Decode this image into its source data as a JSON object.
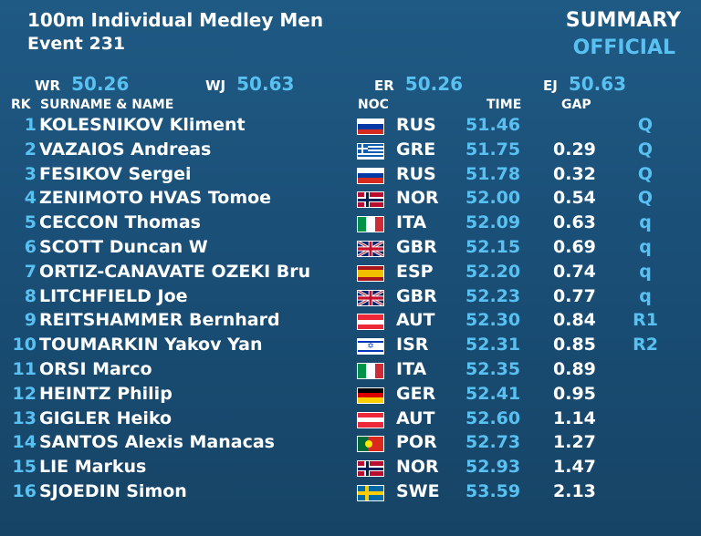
{
  "header": {
    "title": "100m Individual Medley Men",
    "event": "Event 231",
    "status_line1": "SUMMARY",
    "status_line2": "OFFICIAL"
  },
  "records": [
    {
      "label": "WR",
      "value": "50.26"
    },
    {
      "label": "WJ",
      "value": "50.63"
    },
    {
      "label": "ER",
      "value": "50.26"
    },
    {
      "label": "EJ",
      "value": "50.63"
    }
  ],
  "columns": {
    "rank": "RK",
    "name": "SURNAME & NAME",
    "noc": "NOC",
    "time": "TIME",
    "gap": "GAP"
  },
  "results": [
    {
      "rank": "1",
      "name": "KOLESNIKOV Kliment",
      "flag": "russia-flag-icon",
      "noc": "RUS",
      "time": "51.46",
      "gap": "",
      "qual": "Q"
    },
    {
      "rank": "2",
      "name": "VAZAIOS Andreas",
      "flag": "greece-flag-icon",
      "noc": "GRE",
      "time": "51.75",
      "gap": "0.29",
      "qual": "Q"
    },
    {
      "rank": "3",
      "name": "FESIKOV Sergei",
      "flag": "russia-flag-icon",
      "noc": "RUS",
      "time": "51.78",
      "gap": "0.32",
      "qual": "Q"
    },
    {
      "rank": "4",
      "name": "ZENIMOTO HVAS Tomoe",
      "flag": "norway-flag-icon",
      "noc": "NOR",
      "time": "52.00",
      "gap": "0.54",
      "qual": "Q"
    },
    {
      "rank": "5",
      "name": "CECCON Thomas",
      "flag": "italy-flag-icon",
      "noc": "ITA",
      "time": "52.09",
      "gap": "0.63",
      "qual": "q"
    },
    {
      "rank": "6",
      "name": "SCOTT Duncan W",
      "flag": "uk-flag-icon",
      "noc": "GBR",
      "time": "52.15",
      "gap": "0.69",
      "qual": "q"
    },
    {
      "rank": "7",
      "name": "ORTIZ-CANAVATE OZEKI Bru",
      "flag": "spain-flag-icon",
      "noc": "ESP",
      "time": "52.20",
      "gap": "0.74",
      "qual": "q"
    },
    {
      "rank": "8",
      "name": "LITCHFIELD Joe",
      "flag": "uk-flag-icon",
      "noc": "GBR",
      "time": "52.23",
      "gap": "0.77",
      "qual": "q"
    },
    {
      "rank": "9",
      "name": "REITSHAMMER Bernhard",
      "flag": "austria-flag-icon",
      "noc": "AUT",
      "time": "52.30",
      "gap": "0.84",
      "qual": "R1"
    },
    {
      "rank": "10",
      "name": "TOUMARKIN Yakov Yan",
      "flag": "israel-flag-icon",
      "noc": "ISR",
      "time": "52.31",
      "gap": "0.85",
      "qual": "R2"
    },
    {
      "rank": "11",
      "name": "ORSI Marco",
      "flag": "italy-flag-icon",
      "noc": "ITA",
      "time": "52.35",
      "gap": "0.89",
      "qual": ""
    },
    {
      "rank": "12",
      "name": "HEINTZ Philip",
      "flag": "germany-flag-icon",
      "noc": "GER",
      "time": "52.41",
      "gap": "0.95",
      "qual": ""
    },
    {
      "rank": "13",
      "name": "GIGLER Heiko",
      "flag": "austria-flag-icon",
      "noc": "AUT",
      "time": "52.60",
      "gap": "1.14",
      "qual": ""
    },
    {
      "rank": "14",
      "name": "SANTOS Alexis Manacas",
      "flag": "portugal-flag-icon",
      "noc": "POR",
      "time": "52.73",
      "gap": "1.27",
      "qual": ""
    },
    {
      "rank": "15",
      "name": "LIE Markus",
      "flag": "norway-flag-icon",
      "noc": "NOR",
      "time": "52.93",
      "gap": "1.47",
      "qual": ""
    },
    {
      "rank": "16",
      "name": "SJOEDIN Simon",
      "flag": "sweden-flag-icon",
      "noc": "SWE",
      "time": "53.59",
      "gap": "2.13",
      "qual": ""
    }
  ],
  "colors": {
    "accent": "#58c1f2",
    "text": "#ffffff",
    "background": "#1a4f77"
  }
}
